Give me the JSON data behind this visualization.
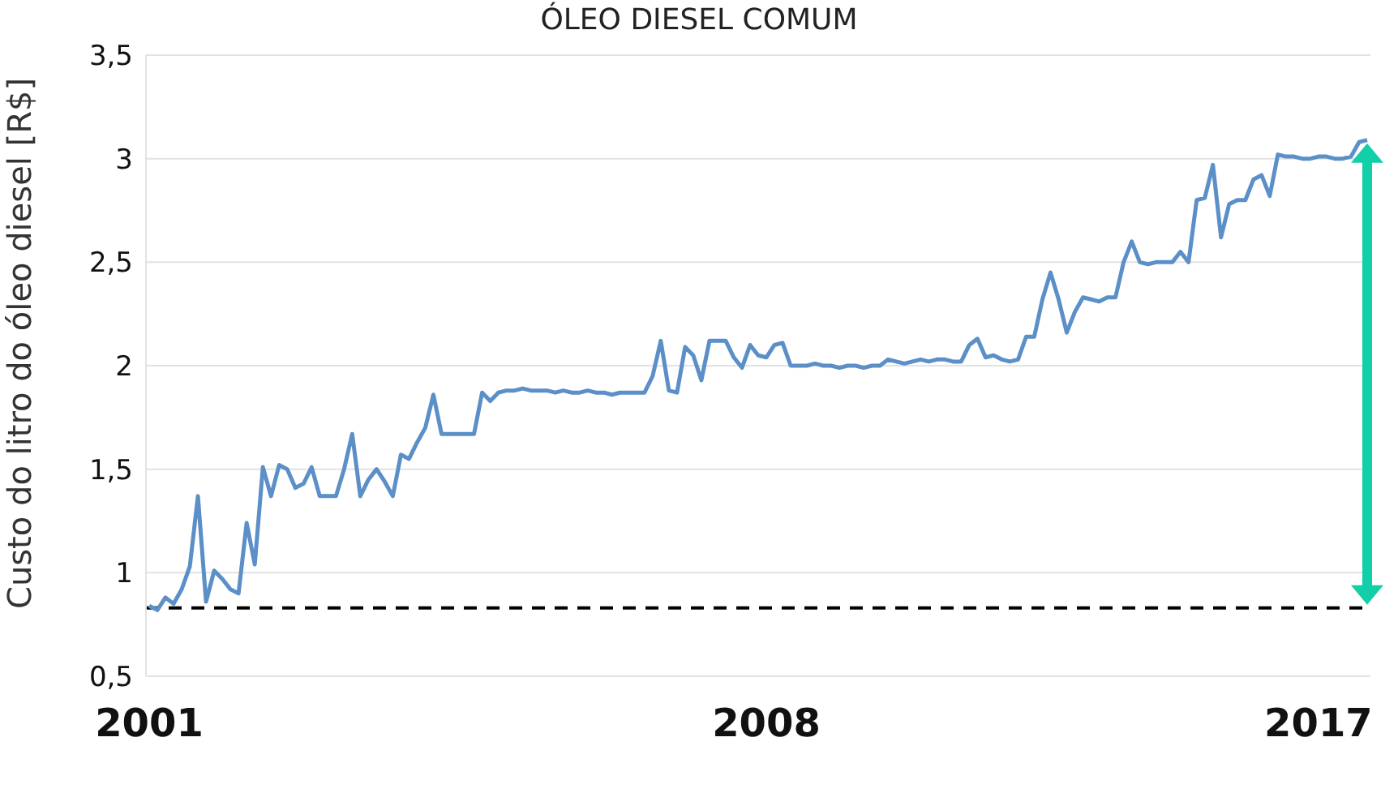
{
  "chart_data": {
    "type": "line",
    "title": "ÓLEO DIESEL COMUM",
    "ylabel": "Custo do litro do óleo diesel [R$]",
    "categories": [
      "2001",
      null,
      null,
      null,
      null,
      null,
      null,
      null,
      null,
      null,
      null,
      null,
      null,
      null,
      null,
      null,
      null,
      null,
      null,
      null,
      null,
      null,
      null,
      null,
      null,
      null,
      null,
      null,
      null,
      null,
      null,
      null,
      null,
      null,
      null,
      null,
      null,
      null,
      null,
      null,
      null,
      null,
      null,
      null,
      null,
      null,
      null,
      null,
      null,
      null,
      null,
      null,
      null,
      null,
      null,
      null,
      null,
      null,
      null,
      null,
      null,
      null,
      null,
      null,
      null,
      null,
      null,
      null,
      null,
      null,
      null,
      null,
      null,
      null,
      null,
      null,
      "2008",
      null,
      null,
      null,
      null,
      null,
      null,
      null,
      null,
      null,
      null,
      null,
      null,
      null,
      null,
      null,
      null,
      null,
      null,
      null,
      null,
      null,
      null,
      null,
      null,
      null,
      null,
      null,
      null,
      null,
      null,
      null,
      null,
      null,
      null,
      null,
      null,
      null,
      null,
      null,
      null,
      null,
      null,
      null,
      null,
      null,
      null,
      null,
      null,
      null,
      null,
      null,
      null,
      null,
      null,
      null,
      null,
      null,
      null,
      null,
      null,
      null,
      null,
      null,
      null,
      null,
      null,
      null,
      "2017",
      null,
      null,
      null,
      null,
      null,
      null
    ],
    "series": [
      {
        "color": "#5b8fc7",
        "values": [
          0.84,
          0.82,
          0.88,
          0.85,
          0.92,
          1.03,
          1.37,
          0.86,
          1.01,
          0.97,
          0.92,
          0.9,
          1.24,
          1.04,
          1.51,
          1.37,
          1.52,
          1.5,
          1.41,
          1.43,
          1.51,
          1.37,
          1.37,
          1.37,
          1.5,
          1.67,
          1.37,
          1.45,
          1.5,
          1.44,
          1.37,
          1.57,
          1.55,
          1.63,
          1.7,
          1.86,
          1.67,
          1.67,
          1.67,
          1.67,
          1.67,
          1.87,
          1.83,
          1.87,
          1.88,
          1.88,
          1.89,
          1.88,
          1.88,
          1.88,
          1.87,
          1.88,
          1.87,
          1.87,
          1.88,
          1.87,
          1.87,
          1.86,
          1.87,
          1.87,
          1.87,
          1.87,
          1.95,
          2.12,
          1.88,
          1.87,
          2.09,
          2.05,
          1.93,
          2.12,
          2.12,
          2.12,
          2.04,
          1.99,
          2.1,
          2.05,
          2.04,
          2.1,
          2.11,
          2.0,
          2.0,
          2.0,
          2.01,
          2.0,
          2.0,
          1.99,
          2.0,
          2.0,
          1.99,
          2.0,
          2.0,
          2.03,
          2.02,
          2.01,
          2.02,
          2.03,
          2.02,
          2.03,
          2.03,
          2.02,
          2.02,
          2.1,
          2.13,
          2.04,
          2.05,
          2.03,
          2.02,
          2.03,
          2.14,
          2.14,
          2.32,
          2.45,
          2.32,
          2.16,
          2.26,
          2.33,
          2.32,
          2.31,
          2.33,
          2.33,
          2.5,
          2.6,
          2.5,
          2.49,
          2.5,
          2.5,
          2.5,
          2.55,
          2.5,
          2.8,
          2.81,
          2.97,
          2.62,
          2.78,
          2.8,
          2.8,
          2.9,
          2.92,
          2.82,
          3.02,
          3.01,
          3.01,
          3.0,
          3.0,
          3.01,
          3.01,
          3.0,
          3.0,
          3.01,
          3.08,
          3.09
        ]
      }
    ],
    "ylim": [
      0.5,
      3.5
    ],
    "yticks": [
      {
        "value": 0.5,
        "label": "0,5"
      },
      {
        "value": 1,
        "label": "1"
      },
      {
        "value": 1.5,
        "label": "1,5"
      },
      {
        "value": 2,
        "label": "2"
      },
      {
        "value": 2.5,
        "label": "2,5"
      },
      {
        "value": 3,
        "label": "3"
      },
      {
        "value": 3.5,
        "label": "3,5"
      }
    ],
    "ref_lines": [
      {
        "axis": "y",
        "value": 0.83,
        "color": "#000000",
        "line_style": "dashed"
      }
    ],
    "grid": "y",
    "marker": "none",
    "line_style": "solid"
  }
}
